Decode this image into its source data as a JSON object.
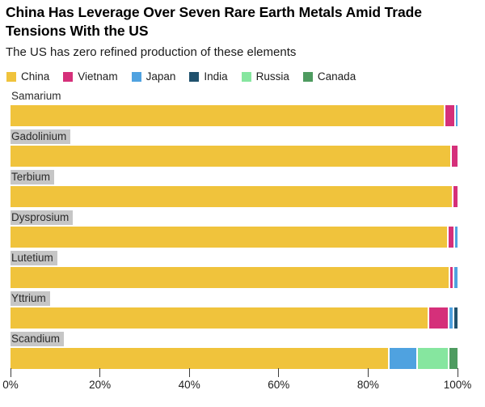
{
  "header": {
    "title": "China Has Leverage Over Seven Rare Earth Metals Amid Trade Tensions With the US",
    "subtitle": "The US has zero refined production of these elements"
  },
  "colors": {
    "background": "#ffffff",
    "category_label_highlight": "#c6c6c6",
    "tick": "#3d3d3d",
    "china": "#f0c33c",
    "vietnam": "#d5307a",
    "japan": "#4fa2e0",
    "india": "#20516d",
    "russia": "#86e69f",
    "canada": "#4e9b60"
  },
  "chart_data": {
    "type": "bar",
    "orientation": "horizontal",
    "stacked": true,
    "unit": "percent",
    "title": "China Has Leverage Over Seven Rare Earth Metals Amid Trade Tensions With the US",
    "subtitle": "The US has zero refined production of these elements",
    "legend_position": "top",
    "grid": false,
    "xlim": [
      0,
      100
    ],
    "x_ticks": [
      {
        "value": 0,
        "label": "0%"
      },
      {
        "value": 20,
        "label": "20%"
      },
      {
        "value": 40,
        "label": "40%"
      },
      {
        "value": 60,
        "label": "60%"
      },
      {
        "value": 80,
        "label": "80%"
      },
      {
        "value": 100,
        "label": "100%"
      }
    ],
    "categories": [
      "Samarium",
      "Gadolinium",
      "Terbium",
      "Dysprosium",
      "Lutetium",
      "Yttrium",
      "Scandium"
    ],
    "category_label_highlighted": [
      false,
      true,
      true,
      true,
      true,
      true,
      true
    ],
    "series": [
      {
        "name": "China",
        "color": "#f0c33c",
        "values": [
          97.0,
          98.3,
          98.7,
          97.7,
          98.1,
          93.3,
          84.5
        ]
      },
      {
        "name": "Vietnam",
        "color": "#d5307a",
        "values": [
          2.2,
          1.7,
          1.3,
          1.4,
          0.8,
          4.5,
          0
        ]
      },
      {
        "name": "Japan",
        "color": "#4fa2e0",
        "values": [
          0.8,
          0,
          0,
          0.9,
          1.1,
          1.2,
          6.3
        ]
      },
      {
        "name": "India",
        "color": "#20516d",
        "values": [
          0,
          0,
          0,
          0,
          0,
          1.0,
          0
        ]
      },
      {
        "name": "Russia",
        "color": "#86e69f",
        "values": [
          0,
          0,
          0,
          0,
          0,
          0,
          7.1
        ]
      },
      {
        "name": "Canada",
        "color": "#4e9b60",
        "values": [
          0,
          0,
          0,
          0,
          0,
          0,
          2.1
        ]
      }
    ]
  }
}
